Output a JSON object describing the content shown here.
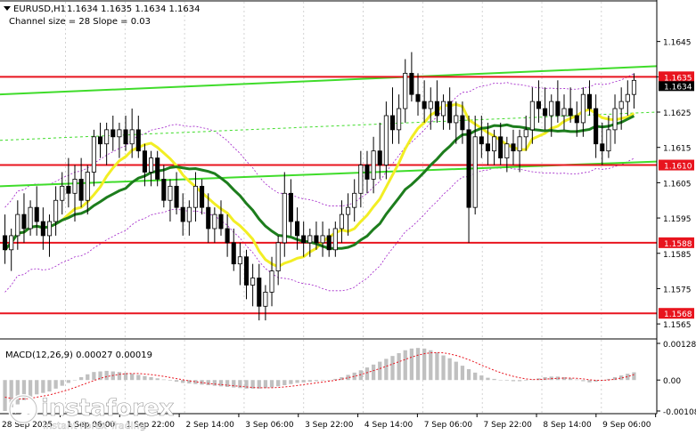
{
  "header": {
    "symbol": "EURUSD,H1",
    "ohlc": "1.1634 1.1635 1.1634 1.1634",
    "channel": "Channel size = 28 Slope = 0.03"
  },
  "price_axis": {
    "ticks": [
      "1.1645",
      "1.1635",
      "1.1625",
      "1.1615",
      "1.1605",
      "1.1595",
      "1.1585",
      "1.1575",
      "1.1565"
    ],
    "levels": [
      {
        "label": "1.1635",
        "value": 1.1635
      },
      {
        "label": "1.1610",
        "value": 1.161
      },
      {
        "label": "1.1588",
        "value": 1.1588
      },
      {
        "label": "1.1568",
        "value": 1.1568
      }
    ],
    "current_label": "1.1634",
    "current_value": 1.1634
  },
  "macd": {
    "title": "MACD(12,26,9) 0.00027 0.00019",
    "ticks": [
      "0.00128",
      "0.00",
      "-0.00108"
    ]
  },
  "time_axis": {
    "labels": [
      "28 Sep 2025",
      "1 Sep 06:00",
      "1 Sep 22:00",
      "2 Sep 14:00",
      "3 Sep 06:00",
      "3 Sep 22:00",
      "4 Sep 14:00",
      "7 Sep 06:00",
      "7 Sep 22:00",
      "8 Sep 14:00",
      "9 Sep 06:00"
    ]
  },
  "brand": {
    "name": "instaforex",
    "tagline": "Instant Forex Trading"
  },
  "colors": {
    "candle": "#000000",
    "level_line": "#e8141e",
    "level_tag": "#e8141e",
    "channel": "#3fdc2a",
    "ma_fast": "#f2ee24",
    "ma_slow": "#1d7d1d",
    "envelope": "#a020c8",
    "macd_hist": "#c0c0c0",
    "macd_signal": "#e8141e",
    "brand": "#ffffff"
  },
  "chart_data": {
    "type": "candlestick",
    "symbol": "EURUSD",
    "timeframe": "H1",
    "ylim": [
      1.1561,
      1.1656
    ],
    "candles": [
      [
        1.159,
        1.1596,
        1.1582,
        1.1586
      ],
      [
        1.1586,
        1.1592,
        1.158,
        1.159
      ],
      [
        1.159,
        1.16,
        1.1586,
        1.1596
      ],
      [
        1.1596,
        1.1602,
        1.1588,
        1.1592
      ],
      [
        1.1592,
        1.16,
        1.159,
        1.1598
      ],
      [
        1.1598,
        1.1604,
        1.159,
        1.1594
      ],
      [
        1.1594,
        1.1598,
        1.1586,
        1.159
      ],
      [
        1.159,
        1.1596,
        1.1584,
        1.1594
      ],
      [
        1.1594,
        1.1604,
        1.159,
        1.16
      ],
      [
        1.16,
        1.1608,
        1.1596,
        1.1604
      ],
      [
        1.1604,
        1.1612,
        1.1598,
        1.1602
      ],
      [
        1.1602,
        1.161,
        1.1594,
        1.1606
      ],
      [
        1.1606,
        1.1612,
        1.1598,
        1.16
      ],
      [
        1.16,
        1.161,
        1.1596,
        1.1608
      ],
      [
        1.1608,
        1.162,
        1.1604,
        1.1618
      ],
      [
        1.1618,
        1.1622,
        1.1612,
        1.1616
      ],
      [
        1.1616,
        1.1622,
        1.161,
        1.162
      ],
      [
        1.162,
        1.1624,
        1.1614,
        1.1618
      ],
      [
        1.1618,
        1.1622,
        1.1612,
        1.162
      ],
      [
        1.162,
        1.1624,
        1.1614,
        1.1616
      ],
      [
        1.1616,
        1.1626,
        1.1612,
        1.162
      ],
      [
        1.162,
        1.1624,
        1.1612,
        1.1614
      ],
      [
        1.1614,
        1.1616,
        1.1604,
        1.1608
      ],
      [
        1.1608,
        1.1614,
        1.1604,
        1.1612
      ],
      [
        1.1612,
        1.1614,
        1.1604,
        1.1606
      ],
      [
        1.1606,
        1.161,
        1.1598,
        1.16
      ],
      [
        1.16,
        1.1606,
        1.1594,
        1.1604
      ],
      [
        1.1604,
        1.1608,
        1.1596,
        1.1598
      ],
      [
        1.1598,
        1.1602,
        1.159,
        1.1594
      ],
      [
        1.1594,
        1.16,
        1.159,
        1.1598
      ],
      [
        1.1598,
        1.1608,
        1.1594,
        1.1604
      ],
      [
        1.1604,
        1.1606,
        1.1596,
        1.1598
      ],
      [
        1.1598,
        1.1602,
        1.1588,
        1.1592
      ],
      [
        1.1592,
        1.1598,
        1.1588,
        1.1596
      ],
      [
        1.1596,
        1.16,
        1.159,
        1.1592
      ],
      [
        1.1592,
        1.1596,
        1.1584,
        1.1588
      ],
      [
        1.1588,
        1.1592,
        1.158,
        1.1582
      ],
      [
        1.1582,
        1.1588,
        1.1576,
        1.1584
      ],
      [
        1.1584,
        1.1586,
        1.1572,
        1.1576
      ],
      [
        1.1576,
        1.1582,
        1.157,
        1.1578
      ],
      [
        1.1578,
        1.1582,
        1.1566,
        1.157
      ],
      [
        1.157,
        1.1576,
        1.1566,
        1.1574
      ],
      [
        1.1574,
        1.1584,
        1.157,
        1.158
      ],
      [
        1.158,
        1.159,
        1.1576,
        1.1588
      ],
      [
        1.1588,
        1.1608,
        1.1584,
        1.1602
      ],
      [
        1.1602,
        1.1606,
        1.159,
        1.1594
      ],
      [
        1.1594,
        1.1598,
        1.1586,
        1.159
      ],
      [
        1.159,
        1.1594,
        1.1584,
        1.1588
      ],
      [
        1.1588,
        1.1592,
        1.1584,
        1.159
      ],
      [
        1.159,
        1.1594,
        1.1586,
        1.1588
      ],
      [
        1.1588,
        1.1594,
        1.1584,
        1.159
      ],
      [
        1.159,
        1.1592,
        1.1584,
        1.1586
      ],
      [
        1.1586,
        1.1594,
        1.1584,
        1.1592
      ],
      [
        1.1592,
        1.16,
        1.1588,
        1.1596
      ],
      [
        1.1596,
        1.1602,
        1.159,
        1.1598
      ],
      [
        1.1598,
        1.1606,
        1.1594,
        1.1602
      ],
      [
        1.1602,
        1.1614,
        1.1598,
        1.161
      ],
      [
        1.161,
        1.1614,
        1.1602,
        1.1606
      ],
      [
        1.1606,
        1.1618,
        1.1602,
        1.1614
      ],
      [
        1.1614,
        1.1622,
        1.1606,
        1.161
      ],
      [
        1.161,
        1.1628,
        1.1606,
        1.1624
      ],
      [
        1.1624,
        1.1632,
        1.1616,
        1.162
      ],
      [
        1.162,
        1.163,
        1.1616,
        1.1626
      ],
      [
        1.1626,
        1.164,
        1.1622,
        1.1636
      ],
      [
        1.1636,
        1.1642,
        1.1628,
        1.163
      ],
      [
        1.163,
        1.1636,
        1.1624,
        1.1628
      ],
      [
        1.1628,
        1.1634,
        1.1622,
        1.1626
      ],
      [
        1.1626,
        1.1632,
        1.162,
        1.1628
      ],
      [
        1.1628,
        1.1634,
        1.1622,
        1.1624
      ],
      [
        1.1624,
        1.163,
        1.162,
        1.1628
      ],
      [
        1.1628,
        1.1632,
        1.162,
        1.1622
      ],
      [
        1.1622,
        1.1628,
        1.1616,
        1.1624
      ],
      [
        1.1624,
        1.1628,
        1.1616,
        1.162
      ],
      [
        1.162,
        1.1624,
        1.1588,
        1.1598
      ],
      [
        1.1598,
        1.1624,
        1.1596,
        1.1618
      ],
      [
        1.1618,
        1.1624,
        1.1612,
        1.1616
      ],
      [
        1.1616,
        1.1622,
        1.161,
        1.1614
      ],
      [
        1.1614,
        1.162,
        1.161,
        1.1618
      ],
      [
        1.1618,
        1.1622,
        1.161,
        1.1612
      ],
      [
        1.1612,
        1.1618,
        1.1608,
        1.1616
      ],
      [
        1.1616,
        1.162,
        1.161,
        1.1614
      ],
      [
        1.1614,
        1.162,
        1.1608,
        1.1618
      ],
      [
        1.1618,
        1.1624,
        1.1614,
        1.162
      ],
      [
        1.162,
        1.1632,
        1.1616,
        1.1628
      ],
      [
        1.1628,
        1.1634,
        1.1622,
        1.1626
      ],
      [
        1.1626,
        1.1632,
        1.162,
        1.1624
      ],
      [
        1.1624,
        1.163,
        1.1618,
        1.1628
      ],
      [
        1.1628,
        1.1634,
        1.1622,
        1.1624
      ],
      [
        1.1624,
        1.163,
        1.162,
        1.1626
      ],
      [
        1.1626,
        1.1632,
        1.1622,
        1.1624
      ],
      [
        1.1624,
        1.1628,
        1.1618,
        1.1622
      ],
      [
        1.1622,
        1.1632,
        1.1618,
        1.163
      ],
      [
        1.163,
        1.1634,
        1.1624,
        1.1626
      ],
      [
        1.1626,
        1.163,
        1.1612,
        1.1616
      ],
      [
        1.1616,
        1.1622,
        1.161,
        1.1614
      ],
      [
        1.1614,
        1.1624,
        1.1612,
        1.162
      ],
      [
        1.162,
        1.163,
        1.1616,
        1.1626
      ],
      [
        1.1626,
        1.1632,
        1.162,
        1.1628
      ],
      [
        1.1628,
        1.1634,
        1.1624,
        1.163
      ],
      [
        1.163,
        1.1636,
        1.1626,
        1.1634
      ]
    ],
    "macd_histogram": [
      -0.00108,
      -0.00095,
      -0.00085,
      -0.0007,
      -0.0006,
      -0.0005,
      -0.00045,
      -0.0004,
      -0.0003,
      -0.0002,
      -0.0001,
      0.0,
      0.0001,
      0.0002,
      0.00028,
      0.0003,
      0.00032,
      0.0003,
      0.00028,
      0.00025,
      0.00022,
      0.00018,
      0.00014,
      0.0001,
      6e-05,
      2e-05,
      -2e-05,
      -6e-05,
      -0.0001,
      -0.00012,
      -0.00014,
      -0.00016,
      -0.00018,
      -0.0002,
      -0.00022,
      -0.00024,
      -0.00026,
      -0.00028,
      -0.0003,
      -0.0003,
      -0.0003,
      -0.00028,
      -0.00026,
      -0.00022,
      -0.00018,
      -0.00014,
      -0.0001,
      -8e-05,
      -6e-05,
      -4e-05,
      -2e-05,
      0.0,
      4e-05,
      0.0001,
      0.00018,
      0.00026,
      0.00034,
      0.00044,
      0.00054,
      0.00064,
      0.00074,
      0.00084,
      0.00094,
      0.00104,
      0.0011,
      0.00112,
      0.0011,
      0.00104,
      0.00096,
      0.00086,
      0.00076,
      0.00064,
      0.0005,
      0.00038,
      0.00026,
      0.00016,
      8e-05,
      4e-05,
      0.0,
      -2e-05,
      -4e-05,
      -4e-05,
      -2e-05,
      2e-05,
      6e-05,
      0.0001,
      0.00012,
      0.00012,
      0.0001,
      6e-05,
      2e-05,
      -4e-05,
      -8e-05,
      -6e-05,
      -2e-05,
      4e-05,
      0.0001,
      0.00016,
      0.00022,
      0.00027
    ],
    "macd_signal": [
      -0.0006,
      -0.00064,
      -0.00066,
      -0.00066,
      -0.00064,
      -0.0006,
      -0.00056,
      -0.00052,
      -0.00046,
      -0.0004,
      -0.00034,
      -0.00026,
      -0.00018,
      -0.0001,
      -2e-05,
      6e-05,
      0.00012,
      0.00016,
      0.0002,
      0.00022,
      0.00023,
      0.00023,
      0.00021,
      0.00019,
      0.00016,
      0.00013,
      9e-05,
      5e-05,
      1e-05,
      -3e-05,
      -6e-05,
      -9e-05,
      -0.00012,
      -0.00014,
      -0.00016,
      -0.00018,
      -0.0002,
      -0.00022,
      -0.00024,
      -0.00026,
      -0.00027,
      -0.00027,
      -0.00027,
      -0.00026,
      -0.00024,
      -0.00022,
      -0.00019,
      -0.00016,
      -0.00013,
      -0.0001,
      -7e-05,
      -4e-05,
      -1e-05,
      3e-05,
      8e-05,
      0.00013,
      0.00019,
      0.00026,
      0.00033,
      0.0004,
      0.00048,
      0.00056,
      0.00064,
      0.00072,
      0.0008,
      0.00087,
      0.00092,
      0.00095,
      0.00096,
      0.00095,
      0.00091,
      0.00086,
      0.00079,
      0.00071,
      0.00062,
      0.00052,
      0.00043,
      0.00034,
      0.00026,
      0.00019,
      0.00013,
      8e-05,
      4e-05,
      2e-05,
      2e-05,
      3e-05,
      5e-05,
      6e-05,
      7e-05,
      7e-05,
      6e-05,
      4e-05,
      1e-05,
      -1e-05,
      -1e-05,
      0.0,
      3e-05,
      7e-05,
      0.00012,
      0.00019
    ]
  }
}
